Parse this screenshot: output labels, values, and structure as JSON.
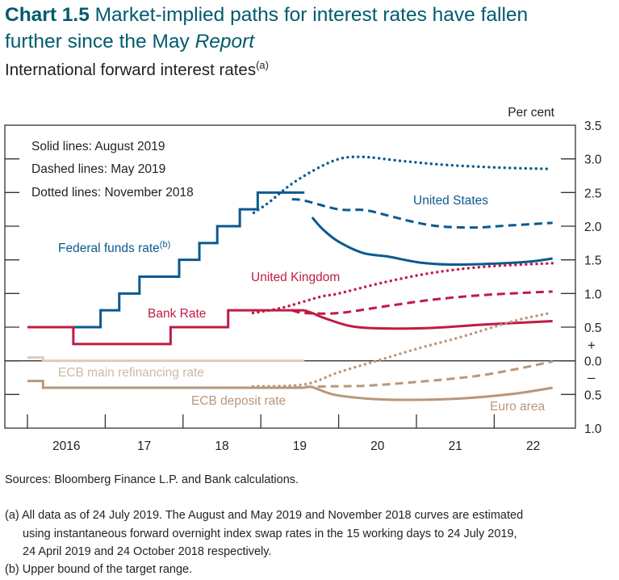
{
  "title": {
    "bold": "Chart 1.5",
    "text": " Market-implied paths for interest rates have fallen",
    "line2": "further since the May ",
    "line2_italic": "Report"
  },
  "subtitle": {
    "text": "International forward interest rates",
    "note": "(a)"
  },
  "chart_data": {
    "type": "line",
    "units_label": "Per cent",
    "ylim": [
      -1.0,
      3.5
    ],
    "xlim": [
      2015.7,
      2022.95
    ],
    "y_ticks": [
      3.5,
      3.0,
      2.5,
      2.0,
      1.5,
      1.0,
      0.5,
      0.0,
      -0.5,
      -1.0
    ],
    "y_tick_labels": [
      "3.5",
      "3.0",
      "2.5",
      "2.0",
      "1.5",
      "1.0",
      "0.5",
      "0.0",
      "0.5",
      "1.0"
    ],
    "sign_labels": {
      "plus": "+",
      "minus": "–"
    },
    "x_ticks": [
      2016,
      2017,
      2018,
      2019,
      2020,
      2021,
      2022
    ],
    "x_tick_labels": [
      "2016",
      "17",
      "18",
      "19",
      "20",
      "21",
      "22"
    ],
    "legend_text": [
      "Solid lines: August 2019",
      "Dashed lines: May 2019",
      "Dotted lines: November 2018"
    ],
    "annotations": {
      "fed": "Federal funds rate",
      "fed_note": "(b)",
      "us": "United States",
      "uk": "United Kingdom",
      "bank": "Bank Rate",
      "ecb_mro": "ECB main refinancing rate",
      "ecb_dep": "ECB deposit rate",
      "euro": "Euro area"
    },
    "colors": {
      "us": "#0a5a8f",
      "uk": "#c01b45",
      "ecb_mro": "#dcccbc",
      "euro": "#b9977b",
      "axis": "#333333"
    },
    "series": [
      {
        "id": "fed",
        "color": "us",
        "style": "step",
        "points": [
          [
            2016.0,
            0.5
          ],
          [
            2016.94,
            0.75
          ],
          [
            2017.18,
            1.0
          ],
          [
            2017.44,
            1.25
          ],
          [
            2017.95,
            1.5
          ],
          [
            2018.21,
            1.75
          ],
          [
            2018.44,
            2.0
          ],
          [
            2018.73,
            2.25
          ],
          [
            2018.96,
            2.5
          ],
          [
            2019.56,
            2.5
          ]
        ]
      },
      {
        "id": "bank",
        "color": "uk",
        "style": "step",
        "points": [
          [
            2016.0,
            0.5
          ],
          [
            2016.59,
            0.25
          ],
          [
            2017.84,
            0.5
          ],
          [
            2018.58,
            0.75
          ],
          [
            2019.56,
            0.75
          ]
        ]
      },
      {
        "id": "ecb_mro",
        "color": "ecb_mro",
        "style": "step",
        "points": [
          [
            2016.0,
            0.05
          ],
          [
            2016.2,
            0.0
          ],
          [
            2019.56,
            0.0
          ]
        ]
      },
      {
        "id": "ecb_dep",
        "color": "euro",
        "style": "step",
        "points": [
          [
            2016.0,
            -0.3
          ],
          [
            2016.2,
            -0.4
          ],
          [
            2019.56,
            -0.4
          ]
        ]
      },
      {
        "id": "us_aug19",
        "color": "us",
        "style": "solid",
        "points": [
          [
            2019.66,
            2.13
          ],
          [
            2019.8,
            1.95
          ],
          [
            2020.0,
            1.77
          ],
          [
            2020.32,
            1.6
          ],
          [
            2020.63,
            1.55
          ],
          [
            2021.04,
            1.46
          ],
          [
            2021.43,
            1.43
          ],
          [
            2021.9,
            1.44
          ],
          [
            2022.42,
            1.47
          ],
          [
            2022.75,
            1.52
          ]
        ]
      },
      {
        "id": "us_may19",
        "color": "us",
        "style": "dashed",
        "points": [
          [
            2019.4,
            2.4
          ],
          [
            2019.56,
            2.38
          ],
          [
            2020.0,
            2.25
          ],
          [
            2020.33,
            2.24
          ],
          [
            2020.63,
            2.16
          ],
          [
            2020.94,
            2.07
          ],
          [
            2021.28,
            2.0
          ],
          [
            2021.74,
            1.98
          ],
          [
            2022.18,
            2.01
          ],
          [
            2022.75,
            2.05
          ]
        ]
      },
      {
        "id": "us_nov18",
        "color": "us",
        "style": "dotted",
        "points": [
          [
            2018.91,
            2.2
          ],
          [
            2019.1,
            2.35
          ],
          [
            2019.45,
            2.67
          ],
          [
            2019.93,
            2.97
          ],
          [
            2020.28,
            3.03
          ],
          [
            2020.8,
            2.97
          ],
          [
            2021.38,
            2.91
          ],
          [
            2022.08,
            2.87
          ],
          [
            2022.72,
            2.85
          ]
        ]
      },
      {
        "id": "uk_aug19",
        "color": "uk",
        "style": "solid",
        "points": [
          [
            2019.56,
            0.75
          ],
          [
            2019.66,
            0.71
          ],
          [
            2019.83,
            0.63
          ],
          [
            2020.18,
            0.51
          ],
          [
            2020.63,
            0.48
          ],
          [
            2021.22,
            0.49
          ],
          [
            2021.9,
            0.54
          ],
          [
            2022.75,
            0.59
          ]
        ]
      },
      {
        "id": "uk_may19",
        "color": "uk",
        "style": "dashed",
        "points": [
          [
            2019.4,
            0.75
          ],
          [
            2019.56,
            0.71
          ],
          [
            2020.0,
            0.71
          ],
          [
            2020.6,
            0.81
          ],
          [
            2021.22,
            0.91
          ],
          [
            2021.9,
            0.98
          ],
          [
            2022.75,
            1.03
          ]
        ]
      },
      {
        "id": "uk_nov18",
        "color": "uk",
        "style": "dotted",
        "points": [
          [
            2018.9,
            0.71
          ],
          [
            2019.28,
            0.79
          ],
          [
            2019.76,
            0.95
          ],
          [
            2020.0,
            1.0
          ],
          [
            2020.6,
            1.17
          ],
          [
            2021.22,
            1.31
          ],
          [
            2021.9,
            1.4
          ],
          [
            2022.75,
            1.45
          ]
        ]
      },
      {
        "id": "euro_aug19",
        "color": "euro",
        "style": "solid",
        "points": [
          [
            2019.56,
            -0.4
          ],
          [
            2019.66,
            -0.39
          ],
          [
            2019.93,
            -0.5
          ],
          [
            2020.35,
            -0.56
          ],
          [
            2020.86,
            -0.58
          ],
          [
            2021.56,
            -0.56
          ],
          [
            2022.25,
            -0.49
          ],
          [
            2022.75,
            -0.4
          ]
        ]
      },
      {
        "id": "euro_may19",
        "color": "euro",
        "style": "dashed",
        "points": [
          [
            2019.4,
            -0.4
          ],
          [
            2019.83,
            -0.38
          ],
          [
            2020.35,
            -0.37
          ],
          [
            2021.04,
            -0.31
          ],
          [
            2021.74,
            -0.23
          ],
          [
            2022.25,
            -0.13
          ],
          [
            2022.75,
            -0.01
          ]
        ]
      },
      {
        "id": "euro_nov18",
        "color": "euro",
        "style": "dotted",
        "points": [
          [
            2018.9,
            -0.38
          ],
          [
            2019.56,
            -0.35
          ],
          [
            2020.0,
            -0.17
          ],
          [
            2020.52,
            0.01
          ],
          [
            2021.04,
            0.19
          ],
          [
            2021.56,
            0.35
          ],
          [
            2022.25,
            0.59
          ],
          [
            2022.72,
            0.71
          ]
        ]
      }
    ]
  },
  "sources": "Sources: Bloomberg Finance L.P. and Bank calculations.",
  "footnotes": {
    "a_line1": "(a)  All data as of 24 July 2019. The August and May 2019 and November 2018 curves are estimated",
    "a_line2": "using instantaneous forward overnight index swap rates in the 15 working days to 24 July 2019,",
    "a_line3": "24 April 2019 and 24 October 2018 respectively.",
    "b": "(b)  Upper bound of the target range."
  }
}
